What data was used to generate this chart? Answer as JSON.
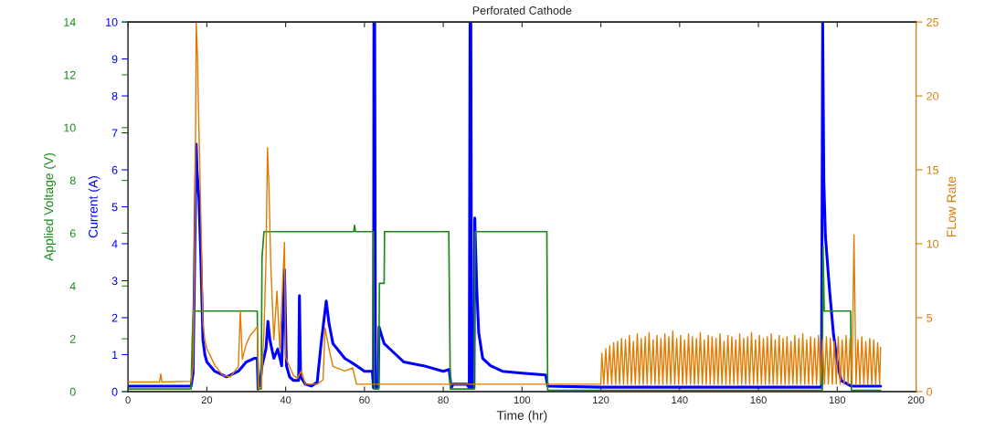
{
  "chart_data": {
    "type": "line",
    "title": "Perforated Cathode",
    "xlabel": "Time (hr)",
    "ylabel": "Current (A)",
    "y2label": "Applied Voltage (V)",
    "y3label": "FLow Rate",
    "xlim": [
      0,
      200
    ],
    "xticks": [
      0,
      20,
      40,
      60,
      80,
      100,
      120,
      140,
      160,
      180,
      200
    ],
    "ylim": [
      0,
      10
    ],
    "yticks": [
      0,
      1,
      2,
      3,
      4,
      5,
      6,
      7,
      8,
      9,
      10
    ],
    "y2lim": [
      0,
      14
    ],
    "y2ticks": [
      0,
      2,
      4,
      6,
      8,
      10,
      12,
      14
    ],
    "y3lim": [
      0,
      25
    ],
    "y3ticks": [
      0,
      5,
      10,
      15,
      20,
      25
    ],
    "grid": false,
    "legend": false,
    "line_style": "solid",
    "series": [
      {
        "axis": "y2",
        "color": "#1a8a1a",
        "x": [
          0,
          16,
          16.3,
          16.6,
          32.8,
          33,
          33.8,
          34,
          34.5,
          57.3,
          57.5,
          57.7,
          62.3,
          62.5,
          63.6,
          63.8,
          65,
          65.1,
          81.4,
          81.8,
          87.8,
          88.1,
          106.3,
          106.5,
          176.2,
          176.4,
          176.7,
          183.4,
          183.6,
          191
        ],
        "values": [
          0.1,
          0.1,
          2,
          3.05,
          3.05,
          0.1,
          0.1,
          5.07,
          6.06,
          6.06,
          6.3,
          6.06,
          6.06,
          0.1,
          0.1,
          4.1,
          4.1,
          6.06,
          6.06,
          0.1,
          0.1,
          6.06,
          6.06,
          0.05,
          0.05,
          5.5,
          3.05,
          3.05,
          0.05,
          0.05
        ]
      },
      {
        "axis": "y",
        "color": "#0000ff",
        "x": [
          0,
          16,
          16.5,
          16.8,
          17.3,
          17.5,
          18,
          18.5,
          19,
          19.5,
          20,
          22,
          25,
          28,
          30,
          32,
          32.8,
          33,
          33.5,
          34,
          35,
          35.5,
          36,
          37,
          38,
          39,
          39.7,
          40.2,
          41,
          42,
          43.3,
          43.5,
          43.8,
          45,
          46.5,
          48,
          49,
          50.3,
          51,
          52,
          55,
          58,
          60,
          62,
          62.3,
          62.4,
          62.6,
          62.8,
          63.5,
          63.7,
          65,
          68,
          70,
          75,
          80,
          81.5,
          82,
          82.5,
          86,
          86.6,
          86.8,
          87,
          87.2,
          87.8,
          88,
          88.5,
          89,
          90,
          92,
          95,
          100,
          106,
          106.5,
          120,
          176,
          176.3,
          176.6,
          177,
          178,
          179,
          180,
          181,
          183.5,
          191
        ],
        "values": [
          0.15,
          0.15,
          0.5,
          2.7,
          6.7,
          6.0,
          5.2,
          3.5,
          1.4,
          1.0,
          0.8,
          0.55,
          0.4,
          0.55,
          0.8,
          0.9,
          0.9,
          0.07,
          0.2,
          0.7,
          1.15,
          1.9,
          1.4,
          0.9,
          1.15,
          0.7,
          3.3,
          0.7,
          0.4,
          0.3,
          0.3,
          2.6,
          0.4,
          0.2,
          0.15,
          0.25,
          1.3,
          2.45,
          1.85,
          1.3,
          0.9,
          0.7,
          0.55,
          0.55,
          0.1,
          10,
          10,
          0.1,
          0.1,
          1.75,
          1.3,
          1.0,
          0.8,
          0.7,
          0.55,
          0.6,
          0.1,
          0.2,
          0.2,
          0.1,
          10,
          10,
          0.1,
          0.1,
          4.7,
          2.8,
          1.6,
          0.9,
          0.7,
          0.55,
          0.5,
          0.45,
          0.15,
          0.12,
          0.12,
          10,
          5.7,
          4.2,
          2.8,
          1.6,
          0.8,
          0.3,
          0.15,
          0.15
        ]
      },
      {
        "axis": "y3",
        "color": "#e07b00",
        "x": [
          0,
          8,
          8.3,
          8.6,
          16,
          16.5,
          17,
          17.3,
          17.6,
          18,
          18.5,
          19,
          19.5,
          20,
          22,
          24,
          26,
          28,
          28.5,
          29,
          30,
          31,
          32,
          32.8,
          33.2,
          33.8,
          34.5,
          35,
          35.4,
          35.8,
          36.2,
          37,
          37.8,
          38.5,
          39.7,
          40,
          41,
          42,
          43,
          44,
          45,
          48,
          49.5,
          50,
          51,
          52,
          55,
          57,
          58,
          120,
          120.25,
          120.75,
          121.25,
          121.75,
          122.25,
          122.75,
          123.25,
          123.75,
          124.25,
          124.75,
          125.25,
          125.75,
          126.25,
          126.75,
          127.25,
          127.75,
          128.25,
          128.75,
          129.25,
          129.75,
          130.25,
          130.75,
          131.25,
          131.75,
          132.25,
          132.75,
          133.25,
          133.75,
          134.25,
          134.75,
          135.25,
          135.75,
          136.25,
          136.75,
          137.25,
          137.75,
          138.25,
          138.75,
          139.25,
          139.75,
          140.25,
          140.75,
          141.25,
          141.75,
          142.25,
          142.75,
          143.25,
          143.75,
          144.25,
          144.75,
          145.25,
          145.75,
          146.25,
          146.75,
          147.25,
          147.75,
          148.25,
          148.75,
          149.25,
          149.75,
          150.25,
          150.75,
          151.25,
          151.75,
          152.25,
          152.75,
          153.25,
          153.75,
          154.25,
          154.75,
          155.25,
          155.75,
          156.25,
          156.75,
          157.25,
          157.75,
          158.25,
          158.75,
          159.25,
          159.75,
          160.25,
          160.75,
          161.25,
          161.75,
          162.25,
          162.75,
          163.25,
          163.75,
          164.25,
          164.75,
          165.25,
          165.75,
          166.25,
          166.75,
          167.25,
          167.75,
          168.25,
          168.75,
          169.25,
          169.75,
          170.25,
          170.75,
          171.25,
          171.75,
          172.25,
          172.75,
          173.25,
          173.75,
          174.25,
          174.75,
          175.25,
          175.75,
          176.25,
          176.75,
          177.25,
          177.75,
          178.25,
          178.75,
          179.25,
          179.75,
          180.25,
          180.75,
          181.25,
          181.75,
          182.25,
          182.75,
          183.25,
          183.75,
          184.25,
          184.75,
          185.25,
          185.75,
          186.25,
          186.75,
          187.25,
          187.75,
          188.25,
          188.75,
          189.25,
          189.75,
          190.25,
          190.75,
          191
        ],
        "values": [
          0.65,
          0.65,
          1.2,
          0.65,
          0.7,
          1.7,
          11.7,
          25,
          22.9,
          17.6,
          11.7,
          4.6,
          3.5,
          2.9,
          1.8,
          1.1,
          1.0,
          1.7,
          5.5,
          2.2,
          3.2,
          3.8,
          4.1,
          4.4,
          0.2,
          0.3,
          4.1,
          8.8,
          16.5,
          13.5,
          8.8,
          3.5,
          6.8,
          2.9,
          10.1,
          2.3,
          1.7,
          1.1,
          0.9,
          1.4,
          0.5,
          0.5,
          0.8,
          4.3,
          2.9,
          1.7,
          1.4,
          1.6,
          0.5,
          0.5,
          2.6,
          0.5,
          2.9,
          0.5,
          3.1,
          0.5,
          3.3,
          0.5,
          3.4,
          0.5,
          3.6,
          0.5,
          3.5,
          0.5,
          3.8,
          0.5,
          3.4,
          0.5,
          3.9,
          0.5,
          3.6,
          0.5,
          3.7,
          0.5,
          4.0,
          0.5,
          3.5,
          0.5,
          3.8,
          0.5,
          3.6,
          0.5,
          3.9,
          0.5,
          3.7,
          0.5,
          4.1,
          0.5,
          3.6,
          0.5,
          3.8,
          0.5,
          3.5,
          0.5,
          3.9,
          0.5,
          3.7,
          0.5,
          3.6,
          0.5,
          4.0,
          0.5,
          3.5,
          0.5,
          3.8,
          0.5,
          3.7,
          0.5,
          3.6,
          0.5,
          3.9,
          0.5,
          3.4,
          0.5,
          3.8,
          0.5,
          3.7,
          0.5,
          3.5,
          0.5,
          3.9,
          0.5,
          3.6,
          0.5,
          3.7,
          0.5,
          4.0,
          0.5,
          3.5,
          0.5,
          3.8,
          0.5,
          3.6,
          0.5,
          3.7,
          0.5,
          3.9,
          0.5,
          3.5,
          0.5,
          3.8,
          0.5,
          3.6,
          0.5,
          3.7,
          0.5,
          3.4,
          0.5,
          3.8,
          0.5,
          3.6,
          0.5,
          3.9,
          0.5,
          3.5,
          0.5,
          3.7,
          0.5,
          3.6,
          0.5,
          3.8,
          0.5,
          3.5,
          0.5,
          3.7,
          0.5,
          3.6,
          0.5,
          3.4,
          0.5,
          3.7,
          0.5,
          3.5,
          0.5,
          3.8,
          0.5,
          3.6,
          0.5,
          10.6,
          0.5,
          3.5,
          0.5,
          3.7,
          0.5,
          3.4,
          0.5,
          3.6,
          0.5,
          3.5,
          0.5,
          3.3,
          0.5,
          3.0
        ]
      }
    ]
  }
}
